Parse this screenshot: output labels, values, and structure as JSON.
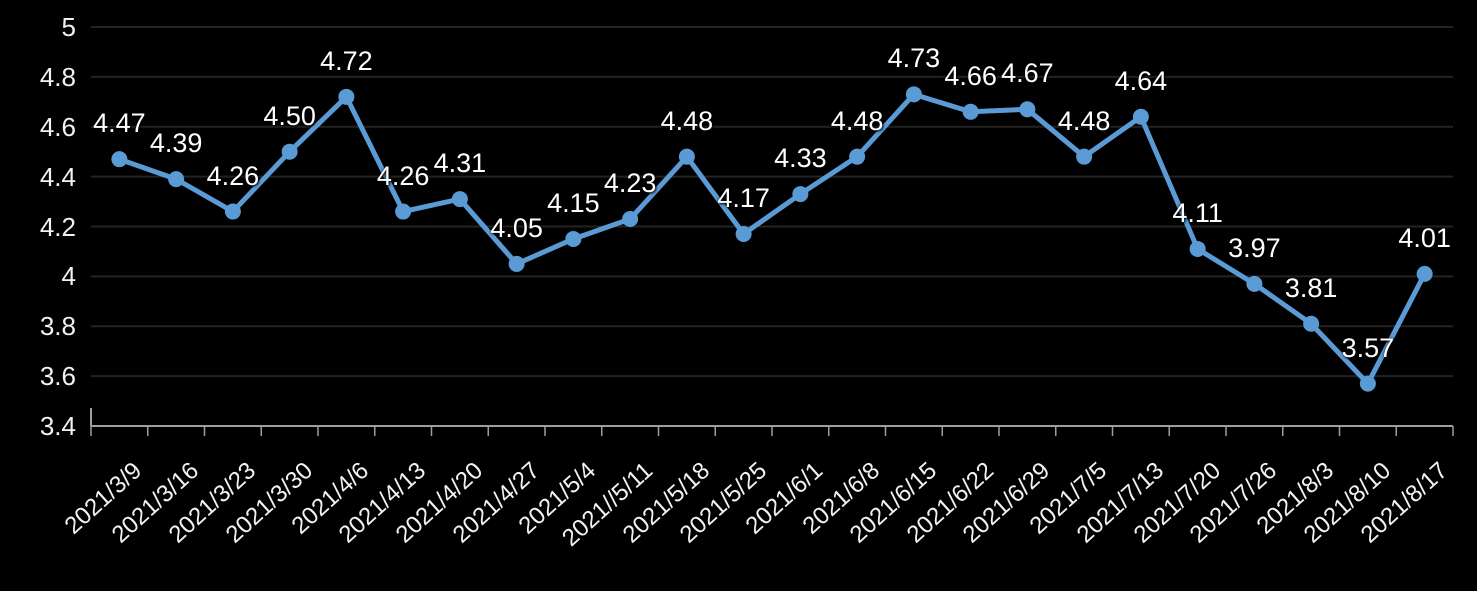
{
  "chart_data": {
    "type": "line",
    "title": "",
    "xlabel": "",
    "ylabel": "",
    "legend": "none",
    "grid": "horizontal",
    "x_tick_rotation_deg": -42,
    "ylim": [
      3.4,
      5
    ],
    "y_ticks": {
      "values": [
        5,
        4.8,
        4.6,
        4.4,
        4.2,
        4,
        3.8,
        3.6,
        3.4
      ],
      "labels": [
        "5",
        "4.8",
        "4.6",
        "4.4",
        "4.2",
        "4",
        "3.8",
        "3.6",
        "3.4"
      ]
    },
    "categories": [
      "2021/3/9",
      "2021/3/16",
      "2021/3/23",
      "2021/3/30",
      "2021/4/6",
      "2021/4/13",
      "2021/4/20",
      "2021/4/27",
      "2021/5/4",
      "2021//5/11",
      "2021/5/18",
      "2021/5/25",
      "2021/6/1",
      "2021/6/8",
      "2021/6/15",
      "2021/6/22",
      "2021/6/29",
      "2021/7/5",
      "2021/7/13",
      "2021/7/20",
      "2021/7/26",
      "2021/8/3",
      "2021/8/10",
      "2021/8/17"
    ],
    "values": [
      4.47,
      4.39,
      4.26,
      4.5,
      4.72,
      4.26,
      4.31,
      4.05,
      4.15,
      4.23,
      4.48,
      4.17,
      4.33,
      4.48,
      4.73,
      4.66,
      4.67,
      4.48,
      4.64,
      4.11,
      3.97,
      3.81,
      3.57,
      4.01
    ],
    "point_labels": [
      "4.47",
      "4.39",
      "4.26",
      "4.50",
      "4.72",
      "4.26",
      "4.31",
      "4.05",
      "4.15",
      "4.23",
      "4.48",
      "4.17",
      "4.33",
      "4.48",
      "4.73",
      "4.66",
      "4.67",
      "4.48",
      "4.64",
      "4.11",
      "3.97",
      "3.81",
      "3.57",
      "4.01"
    ]
  },
  "colors": {
    "background": "#000000",
    "line": "#5B9BD5",
    "marker": "#5B9BD5",
    "gridline": "#232323",
    "axis_line": "#9E9E9E",
    "data_label_text": "#FFFFFF",
    "axis_text": "#F2F2F2"
  }
}
